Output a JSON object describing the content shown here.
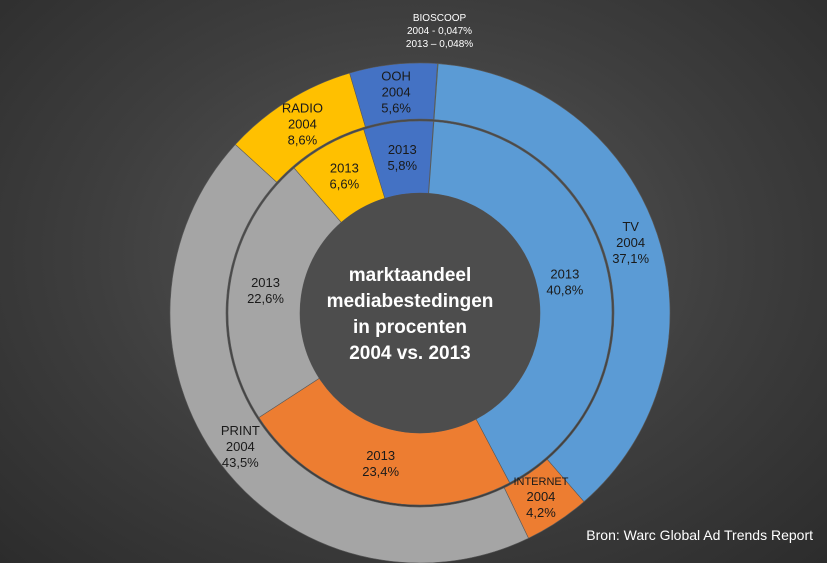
{
  "chart_data": {
    "type": "pie",
    "subtype": "double-donut",
    "title": "marktaandeel mediabestedingen in procenten 2004 vs. 2013",
    "title_lines": [
      "marktaandeel",
      "mediabestedingen",
      "in procenten",
      "2004 vs. 2013"
    ],
    "rings": [
      {
        "name": "2004",
        "position": "outer",
        "slices": [
          {
            "category": "BIOSCOOP",
            "value": 0.047
          },
          {
            "category": "TV",
            "value": 37.1
          },
          {
            "category": "INTERNET",
            "value": 4.2
          },
          {
            "category": "PRINT",
            "value": 43.5
          },
          {
            "category": "RADIO",
            "value": 8.6
          },
          {
            "category": "OOH",
            "value": 5.6
          }
        ]
      },
      {
        "name": "2013",
        "position": "inner",
        "slices": [
          {
            "category": "BIOSCOOP",
            "value": 0.048
          },
          {
            "category": "TV",
            "value": 40.8
          },
          {
            "category": "INTERNET",
            "value": 23.4
          },
          {
            "category": "PRINT",
            "value": 22.6
          },
          {
            "category": "RADIO",
            "value": 6.6
          },
          {
            "category": "OOH",
            "value": 5.8
          }
        ]
      }
    ],
    "colors": {
      "BIOSCOOP": "#70ad47",
      "TV": "#5b9bd5",
      "INTERNET": "#ed7d31",
      "PRINT": "#a5a5a5",
      "RADIO": "#ffc000",
      "OOH": "#4472c4"
    },
    "labels": {
      "outer": {
        "TV": [
          "TV",
          "2004",
          "37,1%"
        ],
        "INTERNET": [
          "INTERNET",
          "2004",
          "4,2%"
        ],
        "PRINT": [
          "PRINT",
          "2004",
          "43,5%"
        ],
        "RADIO": [
          "RADIO",
          "2004",
          "8,6%"
        ],
        "OOH": [
          "OOH",
          "2004",
          "5,6%"
        ]
      },
      "inner": {
        "TV": [
          "2013",
          "40,8%"
        ],
        "INTERNET": [
          "2013",
          "23,4%"
        ],
        "PRINT": [
          "2013",
          "22,6%"
        ],
        "RADIO": [
          "2013",
          "6,6%"
        ],
        "OOH": [
          "2013",
          "5,8%"
        ]
      },
      "bioscoop": [
        "BIOSCOOP",
        "2004 - 0,047%",
        "2013 – 0,048%"
      ]
    },
    "source": "Bron: Warc Global Ad Trends Report"
  }
}
